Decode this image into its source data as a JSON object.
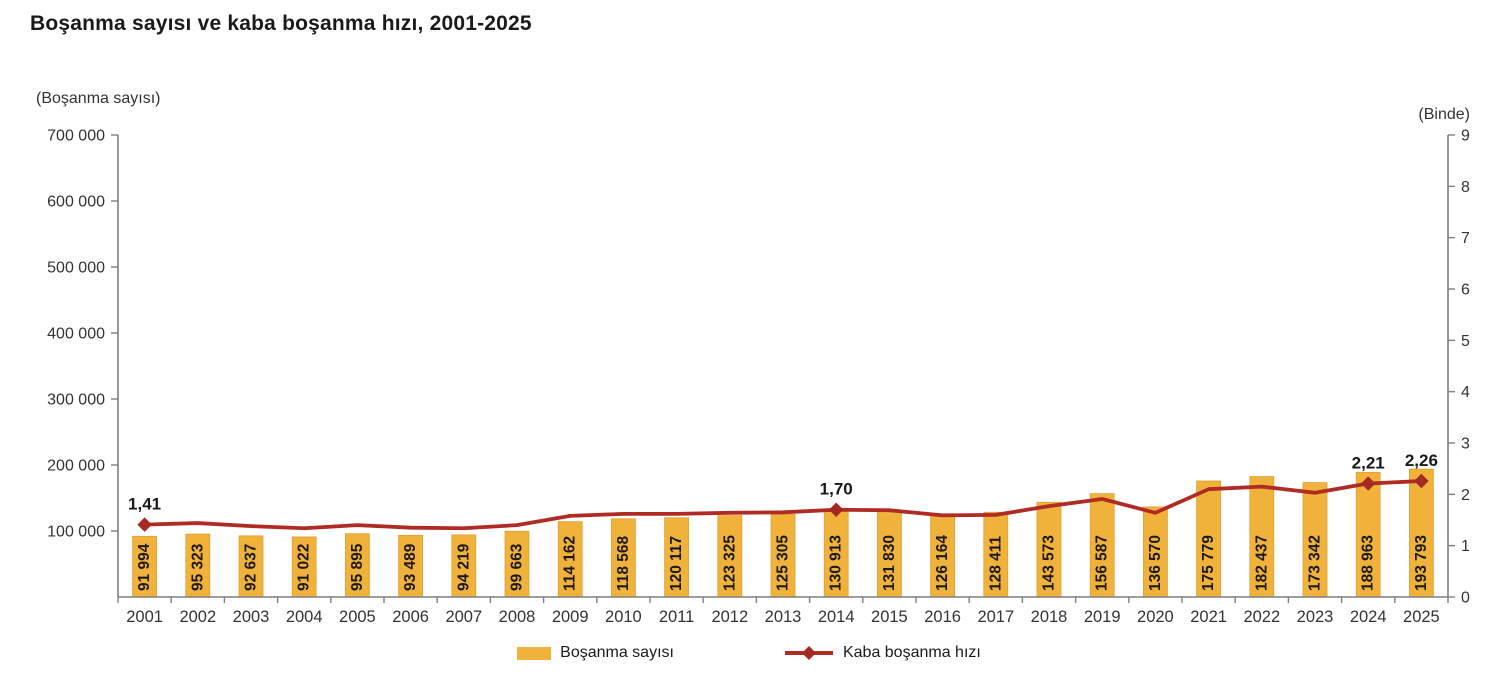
{
  "title": "Boşanma sayısı ve kaba boşanma hızı, 2001-2025",
  "left_axis": {
    "unit_label": "(Boşanma sayısı)",
    "min": 0,
    "max": 700000,
    "tick_step": 100000,
    "tick_labels": [
      "100 000",
      "200 000",
      "300 000",
      "400 000",
      "500 000",
      "600 000",
      "700 000"
    ]
  },
  "right_axis": {
    "unit_label": "(Binde)",
    "min": 0,
    "max": 9,
    "tick_step": 1,
    "tick_labels": [
      "0",
      "1",
      "2",
      "3",
      "4",
      "5",
      "6",
      "7",
      "8",
      "9"
    ]
  },
  "legend": {
    "items": [
      {
        "swatch": "bar",
        "label": "Boşanma sayısı"
      },
      {
        "swatch": "line",
        "label": "Kaba boşanma hızı"
      }
    ]
  },
  "colors": {
    "bar": "#F1B23B",
    "bar_border": "#DC9E2E",
    "line": "#B12B25",
    "marker": "#A42A22",
    "axis": "#7F7F7F",
    "tick_text": "#333333",
    "label_text": "#1A1A1A",
    "background": "#FFFFFF"
  },
  "chart_data": {
    "type": "bar+line combo",
    "title": "Boşanma sayısı ve kaba boşanma hızı, 2001-2025",
    "xlabel": "",
    "ylabel_left": "(Boşanma sayısı)",
    "ylabel_right": "(Binde)",
    "ylim_left": [
      0,
      700000
    ],
    "ylim_right": [
      0,
      9
    ],
    "grid": false,
    "legend_position": "bottom-center",
    "categories": [
      "2001",
      "2002",
      "2003",
      "2004",
      "2005",
      "2006",
      "2007",
      "2008",
      "2009",
      "2010",
      "2011",
      "2012",
      "2013",
      "2014",
      "2015",
      "2016",
      "2017",
      "2018",
      "2019",
      "2020",
      "2021",
      "2022",
      "2023",
      "2024",
      "2025"
    ],
    "series": [
      {
        "name": "Boşanma sayısı",
        "type": "bar",
        "axis": "left",
        "values": [
          91994,
          95323,
          92637,
          91022,
          95895,
          93489,
          94219,
          99663,
          114162,
          118568,
          120117,
          123325,
          125305,
          130913,
          131830,
          126164,
          128411,
          143573,
          156587,
          136570,
          175779,
          182437,
          173342,
          188963,
          193793
        ],
        "value_labels": [
          "91 994",
          "95 323",
          "92 637",
          "91 022",
          "95 895",
          "93 489",
          "94 219",
          "99 663",
          "114 162",
          "118 568",
          "120 117",
          "123 325",
          "125 305",
          "130 913",
          "131 830",
          "126 164",
          "128 411",
          "143 573",
          "156 587",
          "136 570",
          "175 779",
          "182 437",
          "173 342",
          "188 963",
          "193 793"
        ]
      },
      {
        "name": "Kaba boşanma hızı",
        "type": "line",
        "axis": "right",
        "values": [
          1.41,
          1.44,
          1.38,
          1.34,
          1.4,
          1.35,
          1.34,
          1.4,
          1.58,
          1.62,
          1.62,
          1.64,
          1.65,
          1.7,
          1.69,
          1.59,
          1.6,
          1.77,
          1.91,
          1.64,
          2.1,
          2.15,
          2.03,
          2.21,
          2.26
        ],
        "point_labels": {
          "0": "1,41",
          "13": "1,70",
          "23": "2,21",
          "24": "2,26"
        }
      }
    ]
  }
}
